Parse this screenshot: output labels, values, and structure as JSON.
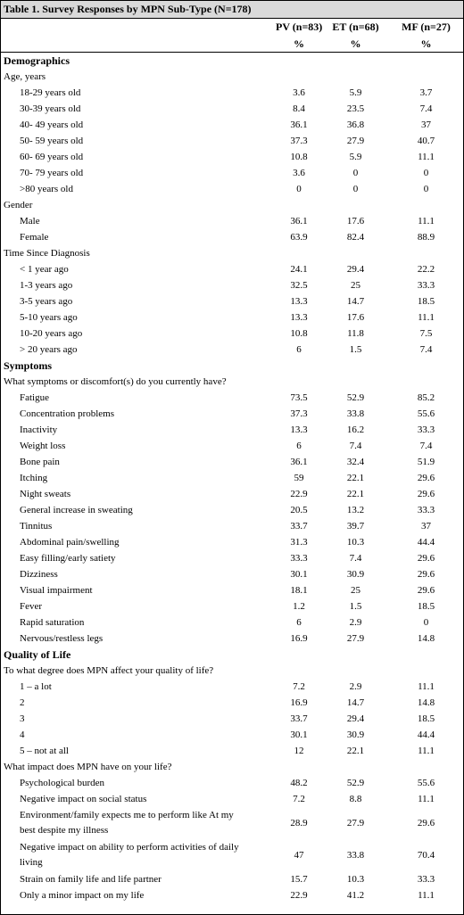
{
  "title": "Table 1. Survey Responses by MPN Sub-Type (N=178)",
  "columns": [
    "PV (n=83)",
    "ET (n=68)",
    "MF (n=27)"
  ],
  "units": [
    "%",
    "%",
    "%"
  ],
  "rows": [
    {
      "type": "section",
      "label": "Demographics"
    },
    {
      "type": "group",
      "label": "Age, years"
    },
    {
      "type": "item",
      "label": "18-29 years old",
      "values": [
        "3.6",
        "5.9",
        "3.7"
      ]
    },
    {
      "type": "item",
      "label": "30-39 years old",
      "values": [
        "8.4",
        "23.5",
        "7.4"
      ]
    },
    {
      "type": "item",
      "label": "40- 49 years old",
      "values": [
        "36.1",
        "36.8",
        "37"
      ]
    },
    {
      "type": "item",
      "label": "50- 59 years old",
      "values": [
        "37.3",
        "27.9",
        "40.7"
      ]
    },
    {
      "type": "item",
      "label": "60- 69 years old",
      "values": [
        "10.8",
        "5.9",
        "11.1"
      ]
    },
    {
      "type": "item",
      "label": "70- 79 years old",
      "values": [
        "3.6",
        "0",
        "0"
      ]
    },
    {
      "type": "item",
      "label": ">80 years old",
      "values": [
        "0",
        "0",
        "0"
      ]
    },
    {
      "type": "group",
      "label": "Gender"
    },
    {
      "type": "item",
      "label": "Male",
      "values": [
        "36.1",
        "17.6",
        "11.1"
      ]
    },
    {
      "type": "item",
      "label": "Female",
      "values": [
        "63.9",
        "82.4",
        "88.9"
      ]
    },
    {
      "type": "group",
      "label": "Time Since Diagnosis"
    },
    {
      "type": "item",
      "label": "< 1 year ago",
      "values": [
        "24.1",
        "29.4",
        "22.2"
      ]
    },
    {
      "type": "item",
      "label": "1-3 years ago",
      "values": [
        "32.5",
        "25",
        "33.3"
      ]
    },
    {
      "type": "item",
      "label": "3-5 years ago",
      "values": [
        "13.3",
        "14.7",
        "18.5"
      ]
    },
    {
      "type": "item",
      "label": "5-10 years ago",
      "values": [
        "13.3",
        "17.6",
        "11.1"
      ]
    },
    {
      "type": "item",
      "label": "10-20 years ago",
      "values": [
        "10.8",
        "11.8",
        "7.5"
      ]
    },
    {
      "type": "item",
      "label": "> 20 years ago",
      "values": [
        "6",
        "1.5",
        "7.4"
      ]
    },
    {
      "type": "section",
      "label": "Symptoms"
    },
    {
      "type": "group",
      "label": "What symptoms or discomfort(s) do you currently have?"
    },
    {
      "type": "item",
      "label": "Fatigue",
      "values": [
        "73.5",
        "52.9",
        "85.2"
      ]
    },
    {
      "type": "item",
      "label": "Concentration problems",
      "values": [
        "37.3",
        "33.8",
        "55.6"
      ]
    },
    {
      "type": "item",
      "label": "Inactivity",
      "values": [
        "13.3",
        "16.2",
        "33.3"
      ]
    },
    {
      "type": "item",
      "label": "Weight loss",
      "values": [
        "6",
        "7.4",
        "7.4"
      ]
    },
    {
      "type": "item",
      "label": "Bone pain",
      "values": [
        "36.1",
        "32.4",
        "51.9"
      ]
    },
    {
      "type": "item",
      "label": "Itching",
      "values": [
        "59",
        "22.1",
        "29.6"
      ]
    },
    {
      "type": "item",
      "label": "Night sweats",
      "values": [
        "22.9",
        "22.1",
        "29.6"
      ]
    },
    {
      "type": "item",
      "label": "General increase in sweating",
      "values": [
        "20.5",
        "13.2",
        "33.3"
      ]
    },
    {
      "type": "item",
      "label": "Tinnitus",
      "values": [
        "33.7",
        "39.7",
        "37"
      ]
    },
    {
      "type": "item",
      "label": "Abdominal pain/swelling",
      "values": [
        "31.3",
        "10.3",
        "44.4"
      ]
    },
    {
      "type": "item",
      "label": "Easy filling/early satiety",
      "values": [
        "33.3",
        "7.4",
        "29.6"
      ]
    },
    {
      "type": "item",
      "label": "Dizziness",
      "values": [
        "30.1",
        "30.9",
        "29.6"
      ]
    },
    {
      "type": "item",
      "label": "Visual impairment",
      "values": [
        "18.1",
        "25",
        "29.6"
      ]
    },
    {
      "type": "item",
      "label": "Fever",
      "values": [
        "1.2",
        "1.5",
        "18.5"
      ]
    },
    {
      "type": "item",
      "label": "Rapid saturation",
      "values": [
        "6",
        "2.9",
        "0"
      ]
    },
    {
      "type": "item",
      "label": "Nervous/restless legs",
      "values": [
        "16.9",
        "27.9",
        "14.8"
      ]
    },
    {
      "type": "section",
      "label": "Quality of Life"
    },
    {
      "type": "group",
      "label": "To what degree does MPN affect your quality of life?"
    },
    {
      "type": "item",
      "label": "1 – a lot",
      "values": [
        "7.2",
        "2.9",
        "11.1"
      ]
    },
    {
      "type": "item",
      "label": "2",
      "values": [
        "16.9",
        "14.7",
        "14.8"
      ]
    },
    {
      "type": "item",
      "label": "3",
      "values": [
        "33.7",
        "29.4",
        "18.5"
      ]
    },
    {
      "type": "item",
      "label": "4",
      "values": [
        "30.1",
        "30.9",
        "44.4"
      ]
    },
    {
      "type": "item",
      "label": "5 – not at all",
      "values": [
        "12",
        "22.1",
        "11.1"
      ]
    },
    {
      "type": "group",
      "label": "What impact does MPN have on your life?"
    },
    {
      "type": "item",
      "label": "Psychological burden",
      "values": [
        "48.2",
        "52.9",
        "55.6"
      ]
    },
    {
      "type": "item",
      "label": "Negative impact on social status",
      "values": [
        "7.2",
        "8.8",
        "11.1"
      ]
    },
    {
      "type": "item2",
      "label": "Environment/family expects me to perform like At my best despite my illness",
      "values": [
        "28.9",
        "27.9",
        "29.6"
      ]
    },
    {
      "type": "item2",
      "label": "Negative impact on ability to perform activities of daily living",
      "values": [
        "47",
        "33.8",
        "70.4"
      ]
    },
    {
      "type": "item",
      "label": "Strain on family life and life partner",
      "values": [
        "15.7",
        "10.3",
        "33.3"
      ]
    },
    {
      "type": "item",
      "label": "Only a minor impact on my life",
      "values": [
        "22.9",
        "41.2",
        "11.1"
      ]
    }
  ]
}
